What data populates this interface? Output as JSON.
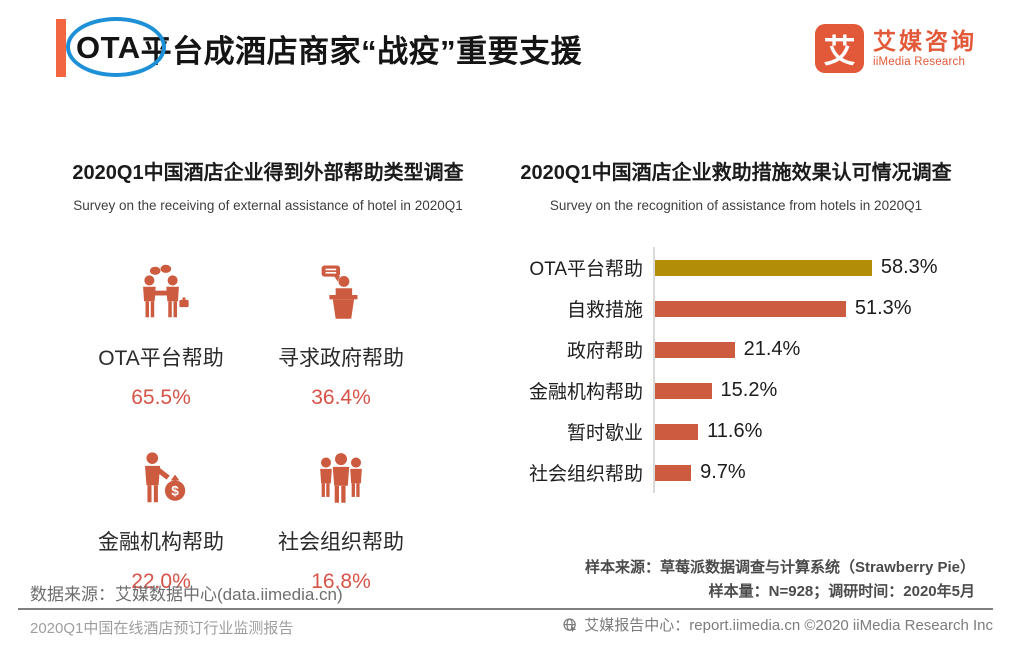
{
  "page": {
    "background": "#ffffff"
  },
  "header": {
    "title_highlight": "OTA",
    "title_rest": "平台成酒店商家“战疫”重要支援",
    "accent_color": "#F26742",
    "circle_color": "#1E90D8",
    "logo": {
      "badge_glyph": "艾",
      "name_cn": "艾媒咨询",
      "name_en": "iiMedia Research",
      "brand_color": "#E25939"
    }
  },
  "chart_data": [
    {
      "type": "bar",
      "style": "pictogram-stats",
      "title": "2020Q1中国酒店企业得到外部帮助类型调查",
      "subtitle": "Survey on the receiving of external assistance of hotel in 2020Q1",
      "categories": [
        "OTA平台帮助",
        "寻求政府帮助",
        "金融机构帮助",
        "社会组织帮助"
      ],
      "values": [
        65.5,
        36.4,
        22.0,
        16.8
      ],
      "value_labels": [
        "65.5%",
        "36.4%",
        "22.0%",
        "16.8%"
      ],
      "icons": [
        "handshake-businessmen-icon",
        "podium-speaker-icon",
        "person-money-bag-icon",
        "people-group-icon"
      ],
      "icon_color": "#CD5B40",
      "value_color": "#D65348"
    },
    {
      "type": "bar",
      "orientation": "horizontal",
      "title": "2020Q1中国酒店企业救助措施效果认可情况调查",
      "subtitle": "Survey on the recognition of assistance from hotels in 2020Q1",
      "categories": [
        "OTA平台帮助",
        "自救措施",
        "政府帮助",
        "金融机构帮助",
        "暂时歇业",
        "社会组织帮助"
      ],
      "values": [
        58.3,
        51.3,
        21.4,
        15.2,
        11.6,
        9.7
      ],
      "value_labels": [
        "58.3%",
        "51.3%",
        "21.4%",
        "15.2%",
        "11.6%",
        "9.7%"
      ],
      "bar_colors": [
        "#B28E08",
        "#CD5B40",
        "#CD5B40",
        "#CD5B40",
        "#CD5B40",
        "#CD5B40"
      ],
      "xlim": [
        0,
        60
      ],
      "grid": false,
      "legend": false,
      "axis_color": "#D9D9D9"
    }
  ],
  "sample_notes": [
    "样本来源：草莓派数据调查与计算系统（Strawberry Pie）",
    "样本量：N=928；调研时间：2020年5月"
  ],
  "data_source": "数据来源：艾媒数据中心(data.iimedia.cn)",
  "footer": {
    "left": "2020Q1中国在线酒店预订行业监测报告",
    "right": "艾媒报告中心：report.iimedia.cn  ©2020  iiMedia Research Inc"
  }
}
